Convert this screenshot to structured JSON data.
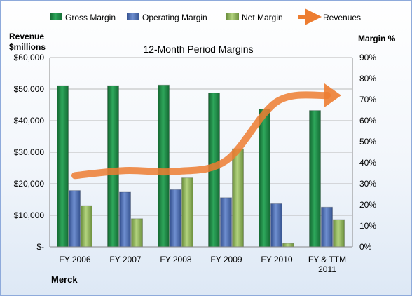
{
  "chart_data": {
    "type": "bar",
    "title": "12-Month Period Margins",
    "company_label": "Merck",
    "left_axis_label_line1": "Revenue",
    "left_axis_label_line2": "$millions",
    "right_axis_label": "Margin %",
    "categories": [
      [
        "FY 2006"
      ],
      [
        "FY 2007"
      ],
      [
        "FY 2008"
      ],
      [
        "FY 2009"
      ],
      [
        "FY 2010"
      ],
      [
        "FY & TTM",
        "2011"
      ]
    ],
    "left_axis": {
      "min": 0,
      "max": 60000,
      "ticks": [
        "$-",
        "$10,000",
        "$20,000",
        "$30,000",
        "$40,000",
        "$50,000",
        "$60,000"
      ]
    },
    "right_axis": {
      "min": 0,
      "max": 90,
      "ticks": [
        "0%",
        "10%",
        "20%",
        "30%",
        "40%",
        "50%",
        "60%",
        "70%",
        "80%",
        "90%"
      ]
    },
    "series": [
      {
        "name": "Gross Margin",
        "kind": "bar",
        "axis": "right",
        "color": "#1e8a49",
        "values": [
          76.6,
          76.6,
          76.9,
          73.1,
          65.4,
          64.8
        ]
      },
      {
        "name": "Operating Margin",
        "kind": "bar",
        "axis": "right",
        "color": "#4f6fb3",
        "values": [
          26.8,
          26.0,
          27.2,
          23.4,
          20.5,
          18.9
        ]
      },
      {
        "name": "Net Margin",
        "kind": "bar",
        "axis": "right",
        "color": "#8db45a",
        "values": [
          19.6,
          13.4,
          32.8,
          46.6,
          1.6,
          13.0
        ]
      },
      {
        "name": "Revenues",
        "kind": "line",
        "axis": "left",
        "color": "#ed7d31",
        "values": [
          22600,
          24200,
          23900,
          27400,
          46000,
          48000
        ]
      }
    ],
    "grid": true,
    "legend_position": "top"
  }
}
